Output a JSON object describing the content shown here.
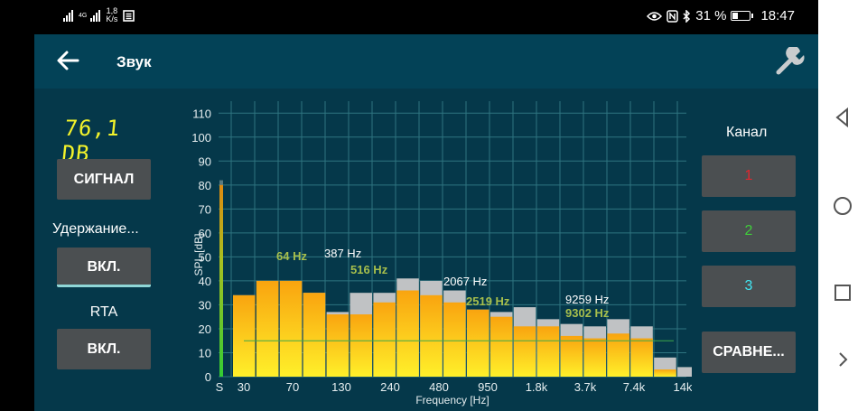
{
  "status_bar": {
    "network_label": "4G",
    "speed_value": "1,8",
    "speed_unit": "K/s",
    "battery_percent": "31 %",
    "time": "18:47"
  },
  "header": {
    "title": "Звук"
  },
  "left_panel": {
    "level_display": "76,1 DB",
    "signal_button": "СИГНАЛ",
    "hold_label": "Удержание...",
    "hold_button": "ВКЛ.",
    "rta_label": "RTA",
    "rta_button": "ВКЛ."
  },
  "right_panel": {
    "channel_label": "Канал",
    "channel_1": "1",
    "channel_2": "2",
    "channel_3": "3",
    "compare_button": "СРАВНЕ..."
  },
  "colors": {
    "background": "#05384a",
    "header": "#034257",
    "bar_top": "#f9a40f",
    "bar_bottom": "#fff02a",
    "peak_hold": "#c0c2c4",
    "grid": "#2e7480",
    "peak_label_yellow": "#a7bf4c",
    "peak_label_white": "#ffffff"
  },
  "chart_data": {
    "type": "bar",
    "ylabel": "SPL [dB]",
    "xlabel": "Frequency [Hz]",
    "ylim": [
      0,
      115
    ],
    "y_ticks": [
      "0",
      "10",
      "20",
      "30",
      "40",
      "50",
      "60",
      "70",
      "80",
      "90",
      "100",
      "110"
    ],
    "x_ticks": [
      "S",
      "30",
      "70",
      "130",
      "240",
      "480",
      "950",
      "1.8k",
      "3.7k",
      "7.4k",
      "14k"
    ],
    "grid": true,
    "bands": 20,
    "values": [
      34,
      40,
      40,
      35,
      26,
      26,
      31,
      36,
      34,
      31,
      28,
      25,
      21,
      21,
      17,
      16,
      18,
      16,
      3,
      0
    ],
    "peak_hold": [
      34,
      40,
      40,
      35,
      27,
      35,
      35,
      41,
      40,
      36,
      28,
      27,
      29,
      24,
      22,
      21,
      24,
      21,
      8,
      4
    ],
    "reference_level": 15,
    "input_meter_level": 80,
    "peak_labels_white": [
      "387 Hz",
      "2067 Hz",
      "9259 Hz"
    ],
    "peak_labels_yellow": [
      "64 Hz",
      "516 Hz",
      "2519 Hz",
      "9302 Hz"
    ]
  }
}
